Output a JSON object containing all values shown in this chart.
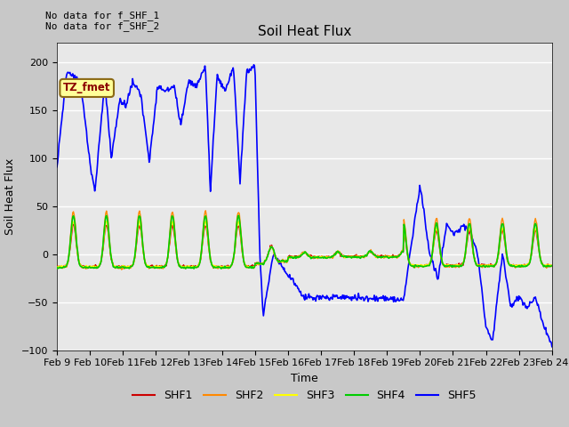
{
  "title": "Soil Heat Flux",
  "xlabel": "Time",
  "ylabel": "Soil Heat Flux",
  "no_data_text_1": "No data for f_SHF_1",
  "no_data_text_2": "No data for f_SHF_2",
  "legend_label": "TZ_fmet",
  "ylim": [
    -100,
    220
  ],
  "yticks": [
    -100,
    -50,
    0,
    50,
    100,
    150,
    200
  ],
  "x_tick_labels": [
    "Feb 9",
    "Feb 10",
    "Feb 11",
    "Feb 12",
    "Feb 13",
    "Feb 14",
    "Feb 15",
    "Feb 16",
    "Feb 17",
    "Feb 18",
    "Feb 19",
    "Feb 20",
    "Feb 21",
    "Feb 22",
    "Feb 23",
    "Feb 24"
  ],
  "colors": {
    "SHF1": "#cc0000",
    "SHF2": "#ff8800",
    "SHF3": "#ffff00",
    "SHF4": "#00cc00",
    "SHF5": "#0000ff"
  },
  "fig_bg": "#c8c8c8",
  "plot_bg": "#e8e8e8"
}
